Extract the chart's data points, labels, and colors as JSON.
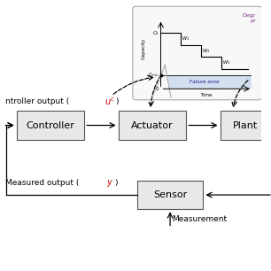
{
  "white": "#ffffff",
  "black": "#000000",
  "red": "#cc0000",
  "purple": "#7B2D8B",
  "blue_fill": "#b8cfe8",
  "box_face": "#e8e8e8",
  "box_edge": "#555555",
  "inset_face": "#f8f8f8",
  "inset_edge": "#aaaaaa",
  "controller_label": "Controller",
  "actuator_label": "Actuator",
  "sensor_label": "Sensor",
  "failure_zone_label": "Failure zone",
  "capacity_label": "Capacity",
  "time_label": "Time",
  "measurement_label": "Measurement",
  "degrad_line1": "Degr",
  "degrad_line2": "pr"
}
